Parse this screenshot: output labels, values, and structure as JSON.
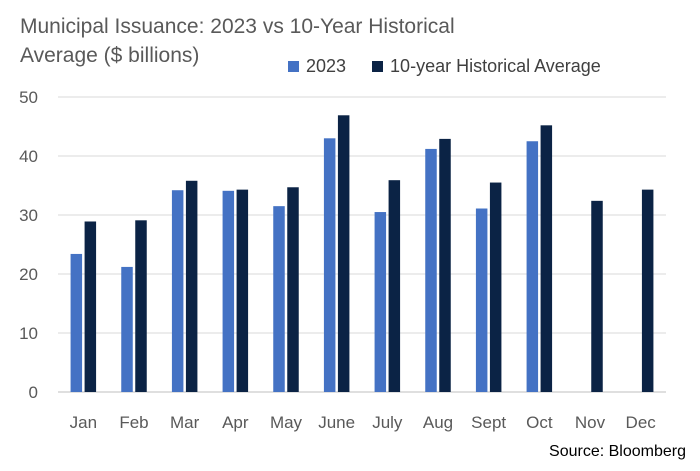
{
  "title": "Municipal Issuance: 2023 vs 10-Year Historical Average ($ billions)",
  "source": "Source: Bloomberg",
  "chart_data": {
    "type": "bar",
    "title": "Municipal Issuance: 2023 vs 10-Year Historical Average ($ billions)",
    "xlabel": "",
    "ylabel": "",
    "ylim": [
      0,
      50
    ],
    "yticks": [
      0,
      10,
      20,
      30,
      40,
      50
    ],
    "grid": true,
    "legend_position": "top",
    "categories": [
      "Jan",
      "Feb",
      "Mar",
      "Apr",
      "May",
      "June",
      "July",
      "Aug",
      "Sept",
      "Oct",
      "Nov",
      "Dec"
    ],
    "series": [
      {
        "name": "2023",
        "color": "#4472C4",
        "values": [
          23.4,
          21.2,
          34.2,
          34.1,
          31.5,
          43.0,
          30.5,
          41.2,
          31.1,
          42.5,
          null,
          null
        ]
      },
      {
        "name": "10-year Historical Average",
        "color": "#0B2345",
        "values": [
          28.9,
          29.1,
          35.8,
          34.3,
          34.7,
          46.9,
          35.9,
          42.9,
          35.5,
          45.2,
          32.4,
          34.3
        ]
      }
    ]
  }
}
